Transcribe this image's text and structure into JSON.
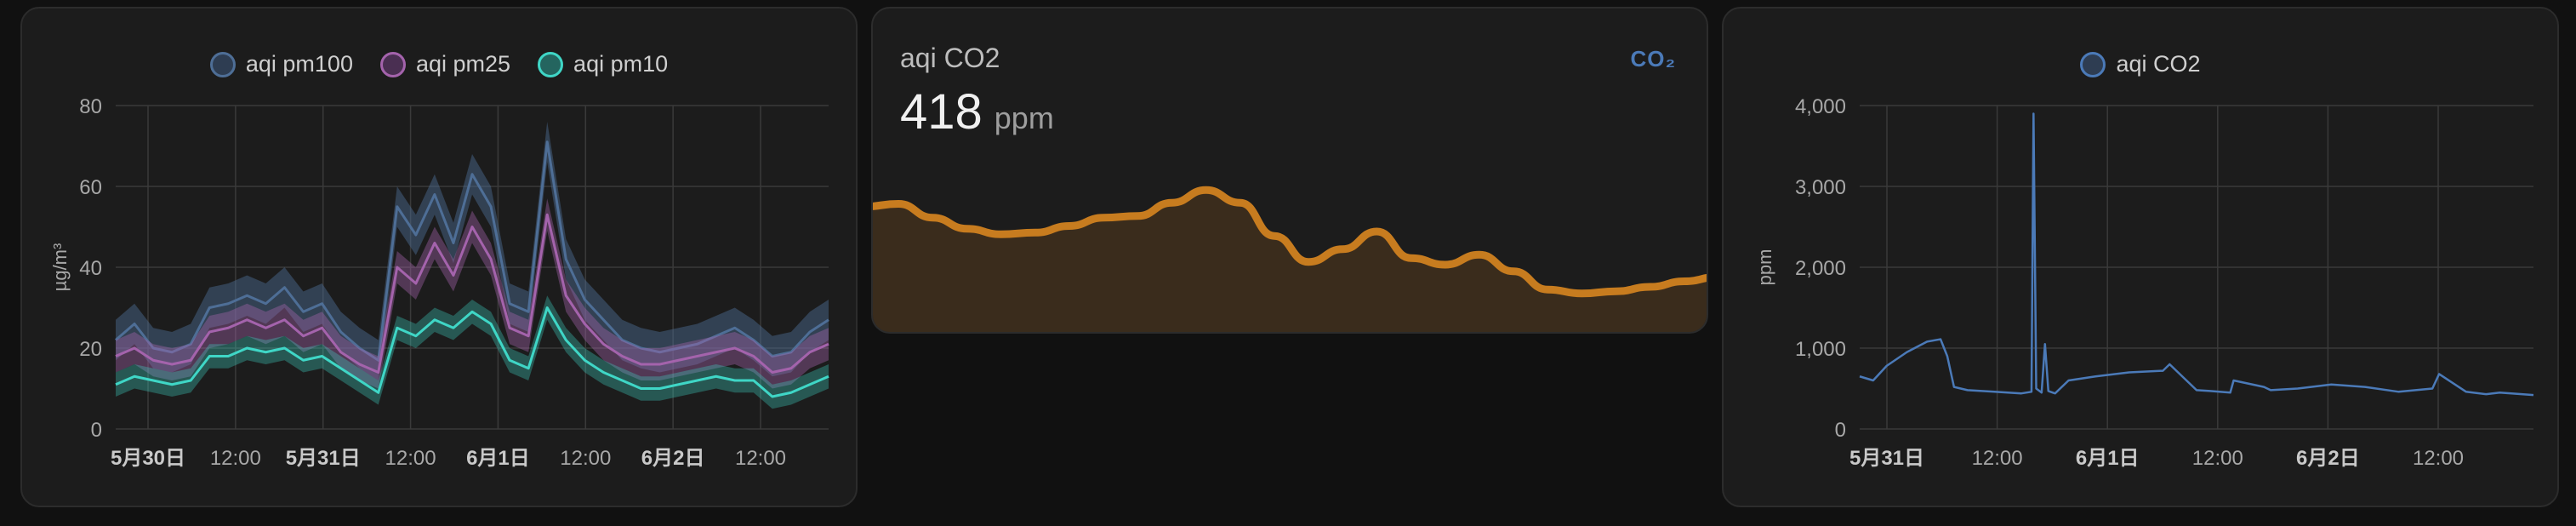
{
  "aqi_card": {
    "legend": [
      {
        "label": "aqi pm100",
        "color": "#3f5a7d"
      },
      {
        "label": "aqi pm25",
        "color": "#7e4a8a"
      },
      {
        "label": "aqi pm10",
        "color": "#3ab9ad"
      }
    ],
    "y_axis_label": "µg/m³"
  },
  "co2_sensor_card": {
    "name": "aqi CO2",
    "value": "418",
    "unit": "ppm",
    "icon": "co2-icon",
    "icon_text": "CO₂",
    "line_color": "#c77c1f"
  },
  "co2_history_card": {
    "legend": [
      {
        "label": "aqi CO2",
        "color": "#4b7ab8"
      }
    ],
    "y_axis_label": "ppm"
  },
  "chart_data": [
    {
      "type": "area",
      "title": "",
      "ylabel": "µg/m³",
      "ylim": [
        0,
        80
      ],
      "yticks": [
        "0",
        "20",
        "40",
        "60",
        "80"
      ],
      "xticks": [
        "5月30日",
        "12:00",
        "5月31日",
        "12:00",
        "6月1日",
        "12:00",
        "6月2日",
        "12:00"
      ],
      "xticks_bold": [
        true,
        false,
        true,
        false,
        true,
        false,
        true,
        false
      ],
      "grid": true,
      "legend_position": "top",
      "series": [
        {
          "name": "aqi pm100",
          "color": "#4e6e96",
          "values": [
            22,
            26,
            20,
            19,
            21,
            30,
            31,
            33,
            31,
            35,
            29,
            31,
            24,
            20,
            17,
            55,
            48,
            58,
            46,
            63,
            55,
            31,
            29,
            71,
            42,
            32,
            27,
            22,
            20,
            19,
            20,
            21,
            23,
            25,
            22,
            18,
            19,
            24,
            27
          ]
        },
        {
          "name": "aqi pm25",
          "color": "#a463ac",
          "values": [
            18,
            20,
            17,
            16,
            17,
            24,
            25,
            27,
            25,
            27,
            23,
            25,
            19,
            16,
            14,
            40,
            36,
            46,
            38,
            50,
            42,
            25,
            23,
            53,
            33,
            26,
            21,
            18,
            16,
            16,
            17,
            18,
            19,
            20,
            18,
            14,
            15,
            19,
            21
          ]
        },
        {
          "name": "aqi pm10",
          "color": "#3fd6c6",
          "values": [
            11,
            13,
            12,
            11,
            12,
            18,
            18,
            20,
            19,
            20,
            17,
            18,
            15,
            12,
            9,
            25,
            23,
            27,
            25,
            29,
            26,
            17,
            15,
            30,
            22,
            17,
            14,
            12,
            10,
            10,
            11,
            12,
            13,
            12,
            12,
            8,
            9,
            11,
            13
          ]
        }
      ]
    },
    {
      "type": "area",
      "title": "aqi CO2",
      "ylabel": "",
      "series": [
        {
          "name": "aqi CO2",
          "color": "#c77c1f",
          "values": [
            545,
            550,
            525,
            505,
            495,
            498,
            510,
            525,
            528,
            552,
            575,
            552,
            492,
            445,
            468,
            500,
            452,
            440,
            458,
            428,
            395,
            388,
            392,
            400,
            410,
            418
          ]
        }
      ]
    },
    {
      "type": "line",
      "title": "",
      "ylabel": "ppm",
      "ylim": [
        0,
        4000
      ],
      "yticks": [
        "0",
        "1,000",
        "2,000",
        "3,000",
        "4,000"
      ],
      "xticks": [
        "5月31日",
        "12:00",
        "6月1日",
        "12:00",
        "6月2日",
        "12:00"
      ],
      "xticks_bold": [
        true,
        false,
        true,
        false,
        true,
        false
      ],
      "grid": true,
      "legend_position": "top",
      "series": [
        {
          "name": "aqi CO2",
          "color": "#4b7ab8",
          "x": [
            0,
            0.02,
            0.04,
            0.07,
            0.1,
            0.12,
            0.13,
            0.14,
            0.16,
            0.2,
            0.24,
            0.255,
            0.258,
            0.262,
            0.27,
            0.275,
            0.28,
            0.283,
            0.29,
            0.31,
            0.35,
            0.4,
            0.45,
            0.46,
            0.5,
            0.52,
            0.55,
            0.555,
            0.6,
            0.61,
            0.65,
            0.7,
            0.75,
            0.8,
            0.85,
            0.86,
            0.9,
            0.93,
            0.95,
            1.0
          ],
          "values": [
            650,
            600,
            780,
            950,
            1080,
            1110,
            900,
            520,
            480,
            460,
            440,
            460,
            3900,
            500,
            450,
            1050,
            470,
            460,
            440,
            600,
            650,
            700,
            720,
            800,
            480,
            470,
            450,
            600,
            520,
            480,
            500,
            550,
            520,
            460,
            500,
            680,
            460,
            430,
            450,
            420
          ]
        }
      ]
    }
  ]
}
